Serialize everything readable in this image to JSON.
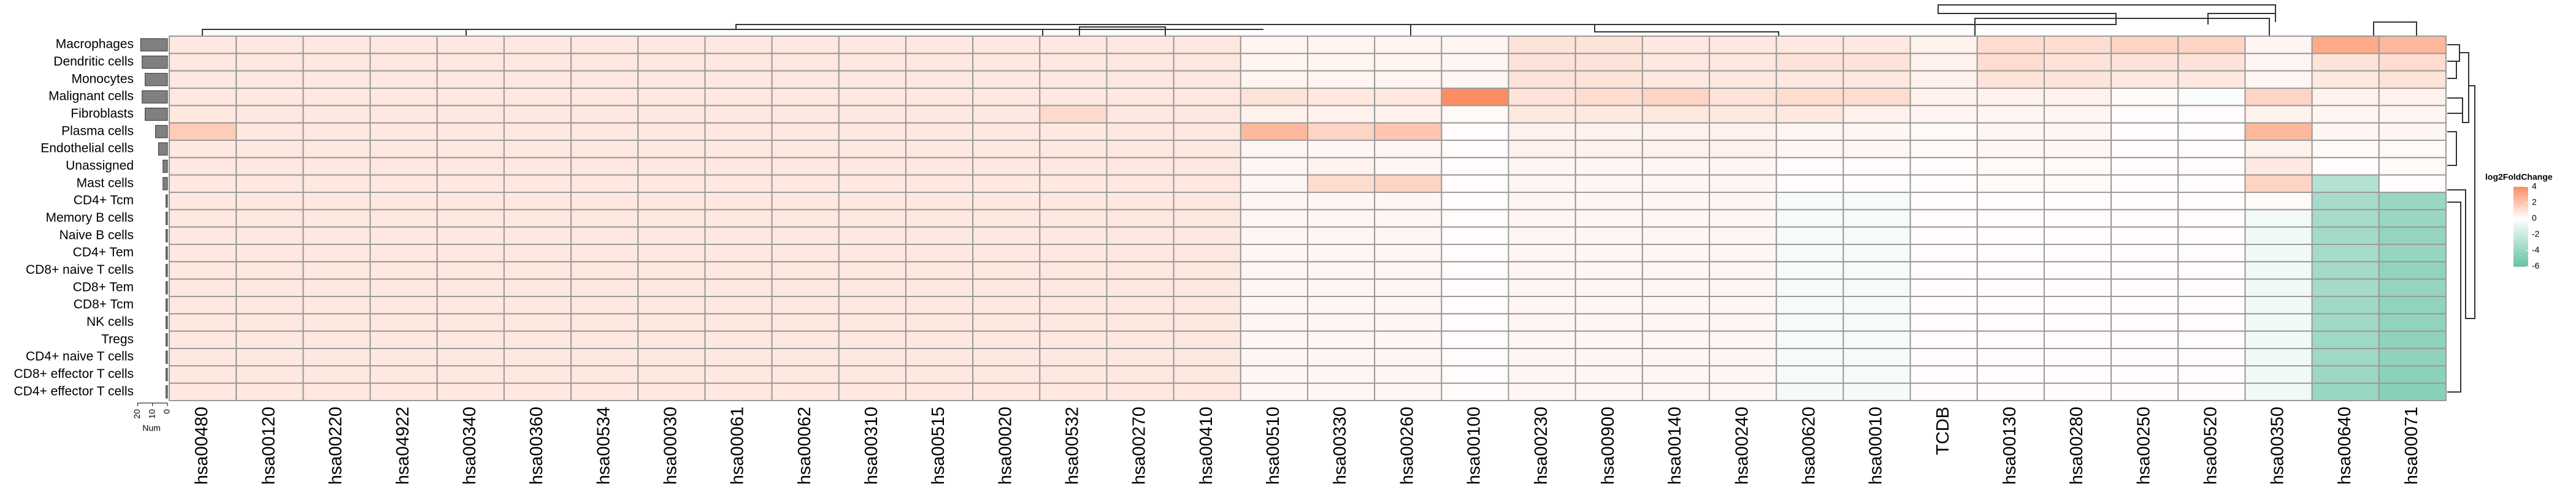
{
  "chart_data": {
    "type": "heatmap",
    "rows": [
      "Macrophages",
      "Dendritic cells",
      "Monocytes",
      "Malignant cells",
      "Fibroblasts",
      "Plasma cells",
      "Endothelial cells",
      "Unassigned",
      "Mast cells",
      "CD4+ Tcm",
      "Memory B cells",
      "Naive B cells",
      "CD4+ Tem",
      "CD8+ naive T cells",
      "CD8+ Tem",
      "CD8+ Tcm",
      "NK cells",
      "Tregs",
      "CD4+ naive T cells",
      "CD8+ effector T cells",
      "CD4+ effector T cells"
    ],
    "columns": [
      "hsa00480",
      "hsa00120",
      "hsa00220",
      "hsa04922",
      "hsa00340",
      "hsa00360",
      "hsa00534",
      "hsa00030",
      "hsa00061",
      "hsa00062",
      "hsa00310",
      "hsa00515",
      "hsa00020",
      "hsa00532",
      "hsa00270",
      "hsa00410",
      "hsa00510",
      "hsa00330",
      "hsa00260",
      "hsa00100",
      "hsa00230",
      "hsa00900",
      "hsa00140",
      "hsa00240",
      "hsa00620",
      "hsa00010",
      "TCDB",
      "hsa00130",
      "hsa00280",
      "hsa00250",
      "hsa00520",
      "hsa00350",
      "hsa00640",
      "hsa00071"
    ],
    "values": [
      [
        0.8,
        0.8,
        0.8,
        0.8,
        0.8,
        0.8,
        0.8,
        0.8,
        0.8,
        0.8,
        0.8,
        0.8,
        0.8,
        0.8,
        0.8,
        0.8,
        0.4,
        0.4,
        0.4,
        0.3,
        1.0,
        1.0,
        0.8,
        0.8,
        0.8,
        0.8,
        0.5,
        1.2,
        1.2,
        1.5,
        1.5,
        0.3,
        3.0,
        2.5
      ],
      [
        0.8,
        0.8,
        0.8,
        0.8,
        0.8,
        0.8,
        0.8,
        0.8,
        0.8,
        0.8,
        0.8,
        0.8,
        0.8,
        0.8,
        0.8,
        0.8,
        0.4,
        0.4,
        0.4,
        0.3,
        1.0,
        1.0,
        0.8,
        0.8,
        1.0,
        1.0,
        0.5,
        1.2,
        1.0,
        1.0,
        1.0,
        0.3,
        1.0,
        1.2
      ],
      [
        0.8,
        0.8,
        0.8,
        0.8,
        0.8,
        0.8,
        0.8,
        0.8,
        0.8,
        0.8,
        0.8,
        0.8,
        0.8,
        0.8,
        0.8,
        0.8,
        0.4,
        0.4,
        0.4,
        0.3,
        1.0,
        1.0,
        0.8,
        0.8,
        0.8,
        0.8,
        0.5,
        1.0,
        1.0,
        0.8,
        0.8,
        0.3,
        0.8,
        1.0
      ],
      [
        0.8,
        0.8,
        0.8,
        0.8,
        0.8,
        0.8,
        0.8,
        0.8,
        0.8,
        0.8,
        0.8,
        0.8,
        0.8,
        0.8,
        0.8,
        0.8,
        1.0,
        0.8,
        0.8,
        4.2,
        1.0,
        1.2,
        1.5,
        1.0,
        1.2,
        1.2,
        0.5,
        0.5,
        0.5,
        0.2,
        -0.2,
        1.5,
        0.5,
        0.5
      ],
      [
        0.8,
        0.8,
        0.8,
        0.8,
        0.8,
        0.8,
        0.8,
        0.8,
        0.8,
        0.8,
        0.8,
        0.8,
        0.8,
        1.3,
        0.8,
        0.8,
        0.5,
        0.5,
        0.5,
        0.2,
        0.8,
        0.8,
        0.8,
        0.8,
        0.8,
        0.5,
        0.3,
        0.3,
        0.3,
        0.1,
        0.1,
        0.5,
        0.3,
        0.3
      ],
      [
        1.8,
        0.8,
        0.8,
        0.8,
        0.8,
        0.8,
        0.8,
        0.8,
        0.8,
        0.8,
        0.8,
        0.8,
        0.8,
        0.8,
        0.8,
        0.8,
        2.5,
        1.5,
        2.0,
        0.1,
        0.5,
        0.5,
        0.5,
        0.5,
        0.3,
        0.3,
        0.2,
        0.3,
        0.3,
        0.1,
        0.1,
        2.5,
        0.3,
        0.3
      ],
      [
        0.8,
        0.8,
        0.8,
        0.8,
        0.8,
        0.8,
        0.8,
        0.8,
        0.8,
        0.8,
        0.8,
        0.8,
        0.8,
        0.8,
        0.8,
        0.8,
        0.3,
        0.3,
        0.3,
        0.1,
        0.5,
        0.5,
        0.5,
        0.5,
        0.3,
        0.3,
        0.2,
        0.3,
        0.3,
        0.1,
        0.1,
        0.5,
        0.2,
        0.2
      ],
      [
        0.8,
        0.8,
        0.8,
        0.8,
        0.8,
        0.8,
        0.8,
        0.8,
        0.8,
        0.8,
        0.8,
        0.8,
        0.8,
        0.8,
        0.8,
        0.8,
        0.3,
        0.5,
        0.3,
        0.1,
        0.3,
        0.3,
        0.3,
        0.3,
        0.1,
        0.1,
        0.1,
        0.2,
        0.2,
        0.1,
        0.1,
        0.8,
        0.1,
        0.2
      ],
      [
        0.8,
        0.8,
        0.8,
        0.8,
        0.8,
        0.8,
        0.8,
        0.8,
        0.8,
        0.8,
        0.8,
        0.8,
        0.8,
        0.8,
        0.8,
        0.8,
        0.3,
        1.2,
        1.5,
        0.1,
        0.3,
        0.3,
        0.3,
        0.3,
        0.1,
        0.1,
        0.1,
        0.2,
        0.2,
        0.1,
        0.1,
        1.5,
        -3.0,
        0.1
      ],
      [
        0.8,
        0.8,
        0.8,
        0.8,
        0.8,
        0.8,
        0.8,
        0.8,
        0.8,
        0.8,
        0.8,
        0.8,
        0.8,
        0.8,
        0.8,
        0.8,
        0.3,
        0.3,
        0.3,
        0.1,
        0.3,
        0.3,
        0.3,
        0.3,
        -0.4,
        -0.4,
        0.1,
        0.1,
        0.1,
        0.1,
        0.1,
        0.2,
        -3.5,
        -4.0
      ],
      [
        0.8,
        0.8,
        0.8,
        0.8,
        0.8,
        0.8,
        0.8,
        0.8,
        0.8,
        0.8,
        0.8,
        0.8,
        0.8,
        0.8,
        0.8,
        0.8,
        0.3,
        0.3,
        0.3,
        0.1,
        0.3,
        0.3,
        0.3,
        0.3,
        -0.4,
        -0.4,
        0.1,
        0.1,
        0.1,
        0.1,
        0.1,
        -0.5,
        -3.5,
        -4.0
      ],
      [
        0.8,
        0.8,
        0.8,
        0.8,
        0.8,
        0.8,
        0.8,
        0.8,
        0.8,
        0.8,
        0.8,
        0.8,
        0.8,
        0.8,
        0.8,
        0.8,
        0.3,
        0.3,
        0.3,
        0.1,
        0.3,
        0.3,
        0.3,
        0.3,
        -0.4,
        -0.4,
        0.1,
        0.1,
        0.1,
        0.1,
        0.1,
        -0.6,
        -3.6,
        -4.2
      ],
      [
        0.8,
        0.8,
        0.8,
        0.8,
        0.8,
        0.8,
        0.8,
        0.8,
        0.8,
        0.8,
        0.8,
        0.8,
        0.8,
        0.8,
        0.8,
        0.8,
        0.3,
        0.3,
        0.3,
        0.1,
        0.3,
        0.3,
        0.3,
        0.3,
        -0.4,
        -0.4,
        0.1,
        0.1,
        0.1,
        0.1,
        0.1,
        -0.6,
        -3.5,
        -4.1
      ],
      [
        0.8,
        0.8,
        0.8,
        0.8,
        0.8,
        0.8,
        0.8,
        0.8,
        0.8,
        0.8,
        0.8,
        0.8,
        0.8,
        0.8,
        0.8,
        0.8,
        0.3,
        0.3,
        0.3,
        0.1,
        0.3,
        0.3,
        0.3,
        0.3,
        -0.4,
        -0.4,
        0.1,
        0.1,
        0.1,
        0.1,
        0.1,
        -0.6,
        -3.6,
        -4.3
      ],
      [
        0.8,
        0.8,
        0.8,
        0.8,
        0.8,
        0.8,
        0.8,
        0.8,
        0.8,
        0.8,
        0.8,
        0.8,
        0.8,
        0.8,
        0.8,
        0.8,
        0.3,
        0.3,
        0.3,
        0.1,
        0.3,
        0.3,
        0.3,
        0.3,
        -0.4,
        -0.4,
        0.1,
        0.1,
        0.1,
        0.1,
        0.1,
        -0.6,
        -3.6,
        -4.2
      ],
      [
        0.8,
        0.8,
        0.8,
        0.8,
        0.8,
        0.8,
        0.8,
        0.8,
        0.8,
        0.8,
        0.8,
        0.8,
        0.8,
        0.8,
        0.8,
        0.8,
        0.3,
        0.3,
        0.3,
        0.1,
        0.3,
        0.3,
        0.3,
        0.3,
        -0.4,
        -0.4,
        0.1,
        0.1,
        0.1,
        0.1,
        0.1,
        -0.6,
        -3.7,
        -4.3
      ],
      [
        0.8,
        0.8,
        0.8,
        0.8,
        0.8,
        0.8,
        0.8,
        0.8,
        0.8,
        0.8,
        0.8,
        0.8,
        0.8,
        0.8,
        0.8,
        0.8,
        0.3,
        0.3,
        0.3,
        0.1,
        0.3,
        0.3,
        0.3,
        0.3,
        -0.4,
        -0.4,
        0.1,
        0.1,
        0.1,
        0.1,
        0.1,
        -0.6,
        -3.7,
        -4.3
      ],
      [
        0.8,
        0.8,
        0.8,
        0.8,
        0.8,
        0.8,
        0.8,
        0.8,
        0.8,
        0.8,
        0.8,
        0.8,
        0.8,
        0.8,
        0.8,
        0.8,
        0.3,
        0.3,
        0.3,
        0.1,
        0.3,
        0.3,
        0.3,
        0.3,
        -0.4,
        -0.4,
        0.1,
        0.1,
        0.1,
        0.1,
        0.1,
        -0.6,
        -3.8,
        -4.4
      ],
      [
        0.8,
        0.8,
        0.8,
        0.8,
        0.8,
        0.8,
        0.8,
        0.8,
        0.8,
        0.8,
        0.8,
        0.8,
        0.8,
        0.8,
        0.8,
        0.8,
        0.3,
        0.3,
        0.3,
        0.1,
        0.3,
        0.3,
        0.3,
        0.3,
        -0.4,
        -0.4,
        0.1,
        0.1,
        0.1,
        0.1,
        0.1,
        -0.6,
        -3.8,
        -4.4
      ],
      [
        0.8,
        0.8,
        0.8,
        0.8,
        0.8,
        0.8,
        0.8,
        0.8,
        0.8,
        0.8,
        0.8,
        0.8,
        0.8,
        0.8,
        0.8,
        0.8,
        0.3,
        0.3,
        0.3,
        0.1,
        0.3,
        0.3,
        0.3,
        0.3,
        -0.4,
        -0.4,
        0.1,
        0.1,
        0.1,
        0.1,
        0.1,
        -0.6,
        -3.9,
        -4.5
      ],
      [
        0.8,
        0.8,
        0.8,
        0.8,
        0.8,
        0.8,
        0.8,
        0.8,
        0.8,
        0.8,
        0.8,
        0.8,
        0.8,
        0.8,
        0.8,
        0.8,
        0.3,
        0.3,
        0.3,
        0.1,
        0.3,
        0.3,
        0.3,
        0.3,
        -0.4,
        -0.4,
        0.1,
        0.1,
        0.1,
        0.1,
        0.1,
        -0.6,
        -4.0,
        -4.6
      ]
    ],
    "colorbar": {
      "title": "log2FoldChange",
      "ticks": [
        4,
        2,
        0,
        -2,
        -4,
        -6
      ],
      "lim": [
        -6,
        4
      ],
      "low_color": "#66c2a5",
      "high_color": "#fc8d62"
    },
    "row_bars": {
      "label": "Num",
      "values": [
        18,
        17,
        15,
        17,
        15,
        8,
        6,
        3,
        3,
        1,
        1,
        1,
        1,
        1,
        1,
        1,
        1,
        1,
        1,
        1,
        1
      ],
      "xlim": [
        0,
        21
      ],
      "xticks": [
        20,
        10,
        0
      ],
      "color": "#808080"
    }
  }
}
